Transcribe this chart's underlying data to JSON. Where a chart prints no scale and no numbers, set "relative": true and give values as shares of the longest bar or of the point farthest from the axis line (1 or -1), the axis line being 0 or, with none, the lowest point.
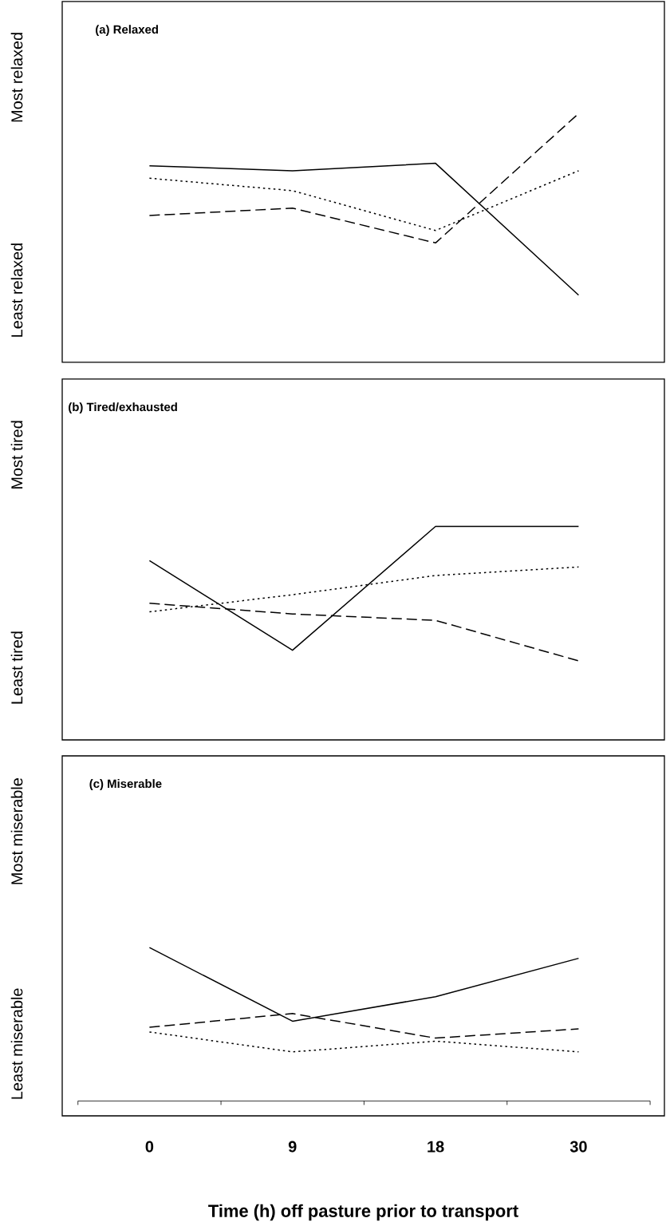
{
  "chart_data": [
    {
      "type": "line",
      "title": "(a) Relaxed",
      "relative": true,
      "tick_labels": false,
      "categories": [
        "0",
        "9",
        "18",
        "30"
      ],
      "annotations": [
        "Most relaxed",
        "Least relaxed"
      ],
      "series": [
        {
          "color": "#000000",
          "line_style": "solid",
          "values": [
            0.79,
            0.77,
            0.8,
            0.27
          ]
        },
        {
          "color": "#000000",
          "line_style": "dotted",
          "values": [
            0.74,
            0.69,
            0.53,
            0.77
          ]
        },
        {
          "color": "#000000",
          "line_style": "dashed",
          "values": [
            0.59,
            0.62,
            0.48,
            1.0
          ]
        }
      ]
    },
    {
      "type": "line",
      "title": "(b) Tired/exhausted",
      "relative": true,
      "tick_labels": false,
      "categories": [
        "0",
        "9",
        "18",
        "30"
      ],
      "annotations": [
        "Most tired",
        "Least tired"
      ],
      "series": [
        {
          "color": "#000000",
          "line_style": "solid",
          "values": [
            0.84,
            0.42,
            1.0,
            1.0
          ]
        },
        {
          "color": "#000000",
          "line_style": "dotted",
          "values": [
            0.6,
            0.68,
            0.77,
            0.81
          ]
        },
        {
          "color": "#000000",
          "line_style": "dashed",
          "values": [
            0.64,
            0.59,
            0.56,
            0.37
          ]
        }
      ]
    },
    {
      "type": "line",
      "title": "(c) Miserable",
      "relative": true,
      "tick_labels": "x",
      "categories": [
        "0",
        "9",
        "18",
        "30"
      ],
      "xlabel": "Time (h) off pasture prior to transport",
      "annotations": [
        "Most miserable",
        "Least miserable"
      ],
      "series": [
        {
          "color": "#000000",
          "line_style": "solid",
          "values": [
            1.0,
            0.52,
            0.68,
            0.93
          ]
        },
        {
          "color": "#000000",
          "line_style": "dotted",
          "values": [
            0.45,
            0.32,
            0.39,
            0.32
          ]
        },
        {
          "color": "#000000",
          "line_style": "dashed",
          "values": [
            0.48,
            0.57,
            0.41,
            0.47
          ]
        }
      ]
    }
  ]
}
